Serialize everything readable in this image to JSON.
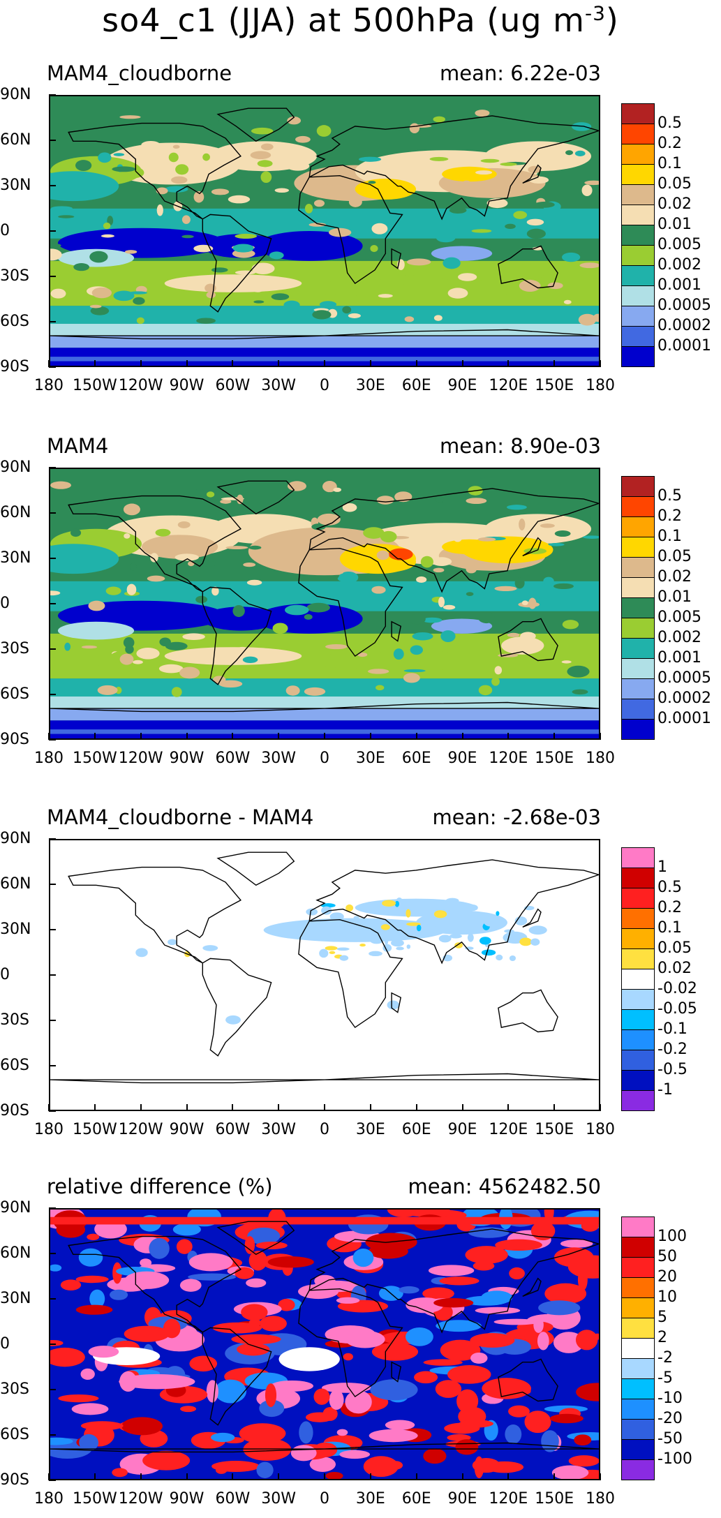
{
  "title": "so4_c1 (JJA) at 500hPa (ug m",
  "title_sup": "-3",
  "title_end": ")",
  "lat_labels": [
    "90N",
    "60N",
    "30N",
    "0",
    "30S",
    "60S",
    "90S"
  ],
  "lon_labels": [
    "180",
    "150W",
    "120W",
    "90W",
    "60W",
    "30W",
    "0",
    "30E",
    "60E",
    "90E",
    "120E",
    "150E",
    "180"
  ],
  "panels": [
    {
      "title": "MAM4_cloudborne",
      "mean": "mean: 6.22e-03",
      "colors": [
        "#b22222",
        "#ff4500",
        "#ffa500",
        "#ffd700",
        "#ddb98c",
        "#f5deb3",
        "#2e8b57",
        "#9acd32",
        "#20b2aa",
        "#b0e0e6",
        "#87a9f0",
        "#4169e1",
        "#0000cd"
      ],
      "levels": [
        "0.5",
        "0.2",
        "0.1",
        "0.05",
        "0.02",
        "0.01",
        "0.005",
        "0.002",
        "0.001",
        "0.0005",
        "0.0002",
        "0.0001"
      ]
    },
    {
      "title": "MAM4",
      "mean": "mean: 8.90e-03",
      "colors": [
        "#b22222",
        "#ff4500",
        "#ffa500",
        "#ffd700",
        "#ddb98c",
        "#f5deb3",
        "#2e8b57",
        "#9acd32",
        "#20b2aa",
        "#b0e0e6",
        "#87a9f0",
        "#4169e1",
        "#0000cd"
      ],
      "levels": [
        "0.5",
        "0.2",
        "0.1",
        "0.05",
        "0.02",
        "0.01",
        "0.005",
        "0.002",
        "0.001",
        "0.0005",
        "0.0002",
        "0.0001"
      ]
    },
    {
      "title": "MAM4_cloudborne - MAM4",
      "mean": "mean: -2.68e-03",
      "colors": [
        "#ff7ac6",
        "#d00000",
        "#ff2020",
        "#ff7000",
        "#ffb000",
        "#ffe040",
        "#ffffff",
        "#a8d8ff",
        "#00bfff",
        "#1e90ff",
        "#3060e0",
        "#0010c0",
        "#8a2be2"
      ],
      "levels": [
        "1",
        "0.5",
        "0.2",
        "0.1",
        "0.05",
        "0.02",
        "-0.02",
        "-0.05",
        "-0.1",
        "-0.2",
        "-0.5",
        "-1"
      ]
    },
    {
      "title": "relative difference (%)",
      "mean": "mean: 4562482.50",
      "colors": [
        "#ff7ac6",
        "#d00000",
        "#ff2020",
        "#ff7000",
        "#ffb000",
        "#ffe040",
        "#ffffff",
        "#a8d8ff",
        "#00bfff",
        "#1e90ff",
        "#3060e0",
        "#0010c0",
        "#8a2be2"
      ],
      "levels": [
        "100",
        "50",
        "20",
        "10",
        "5",
        "2",
        "-2",
        "-5",
        "-10",
        "-20",
        "-50",
        "-100"
      ]
    }
  ]
}
